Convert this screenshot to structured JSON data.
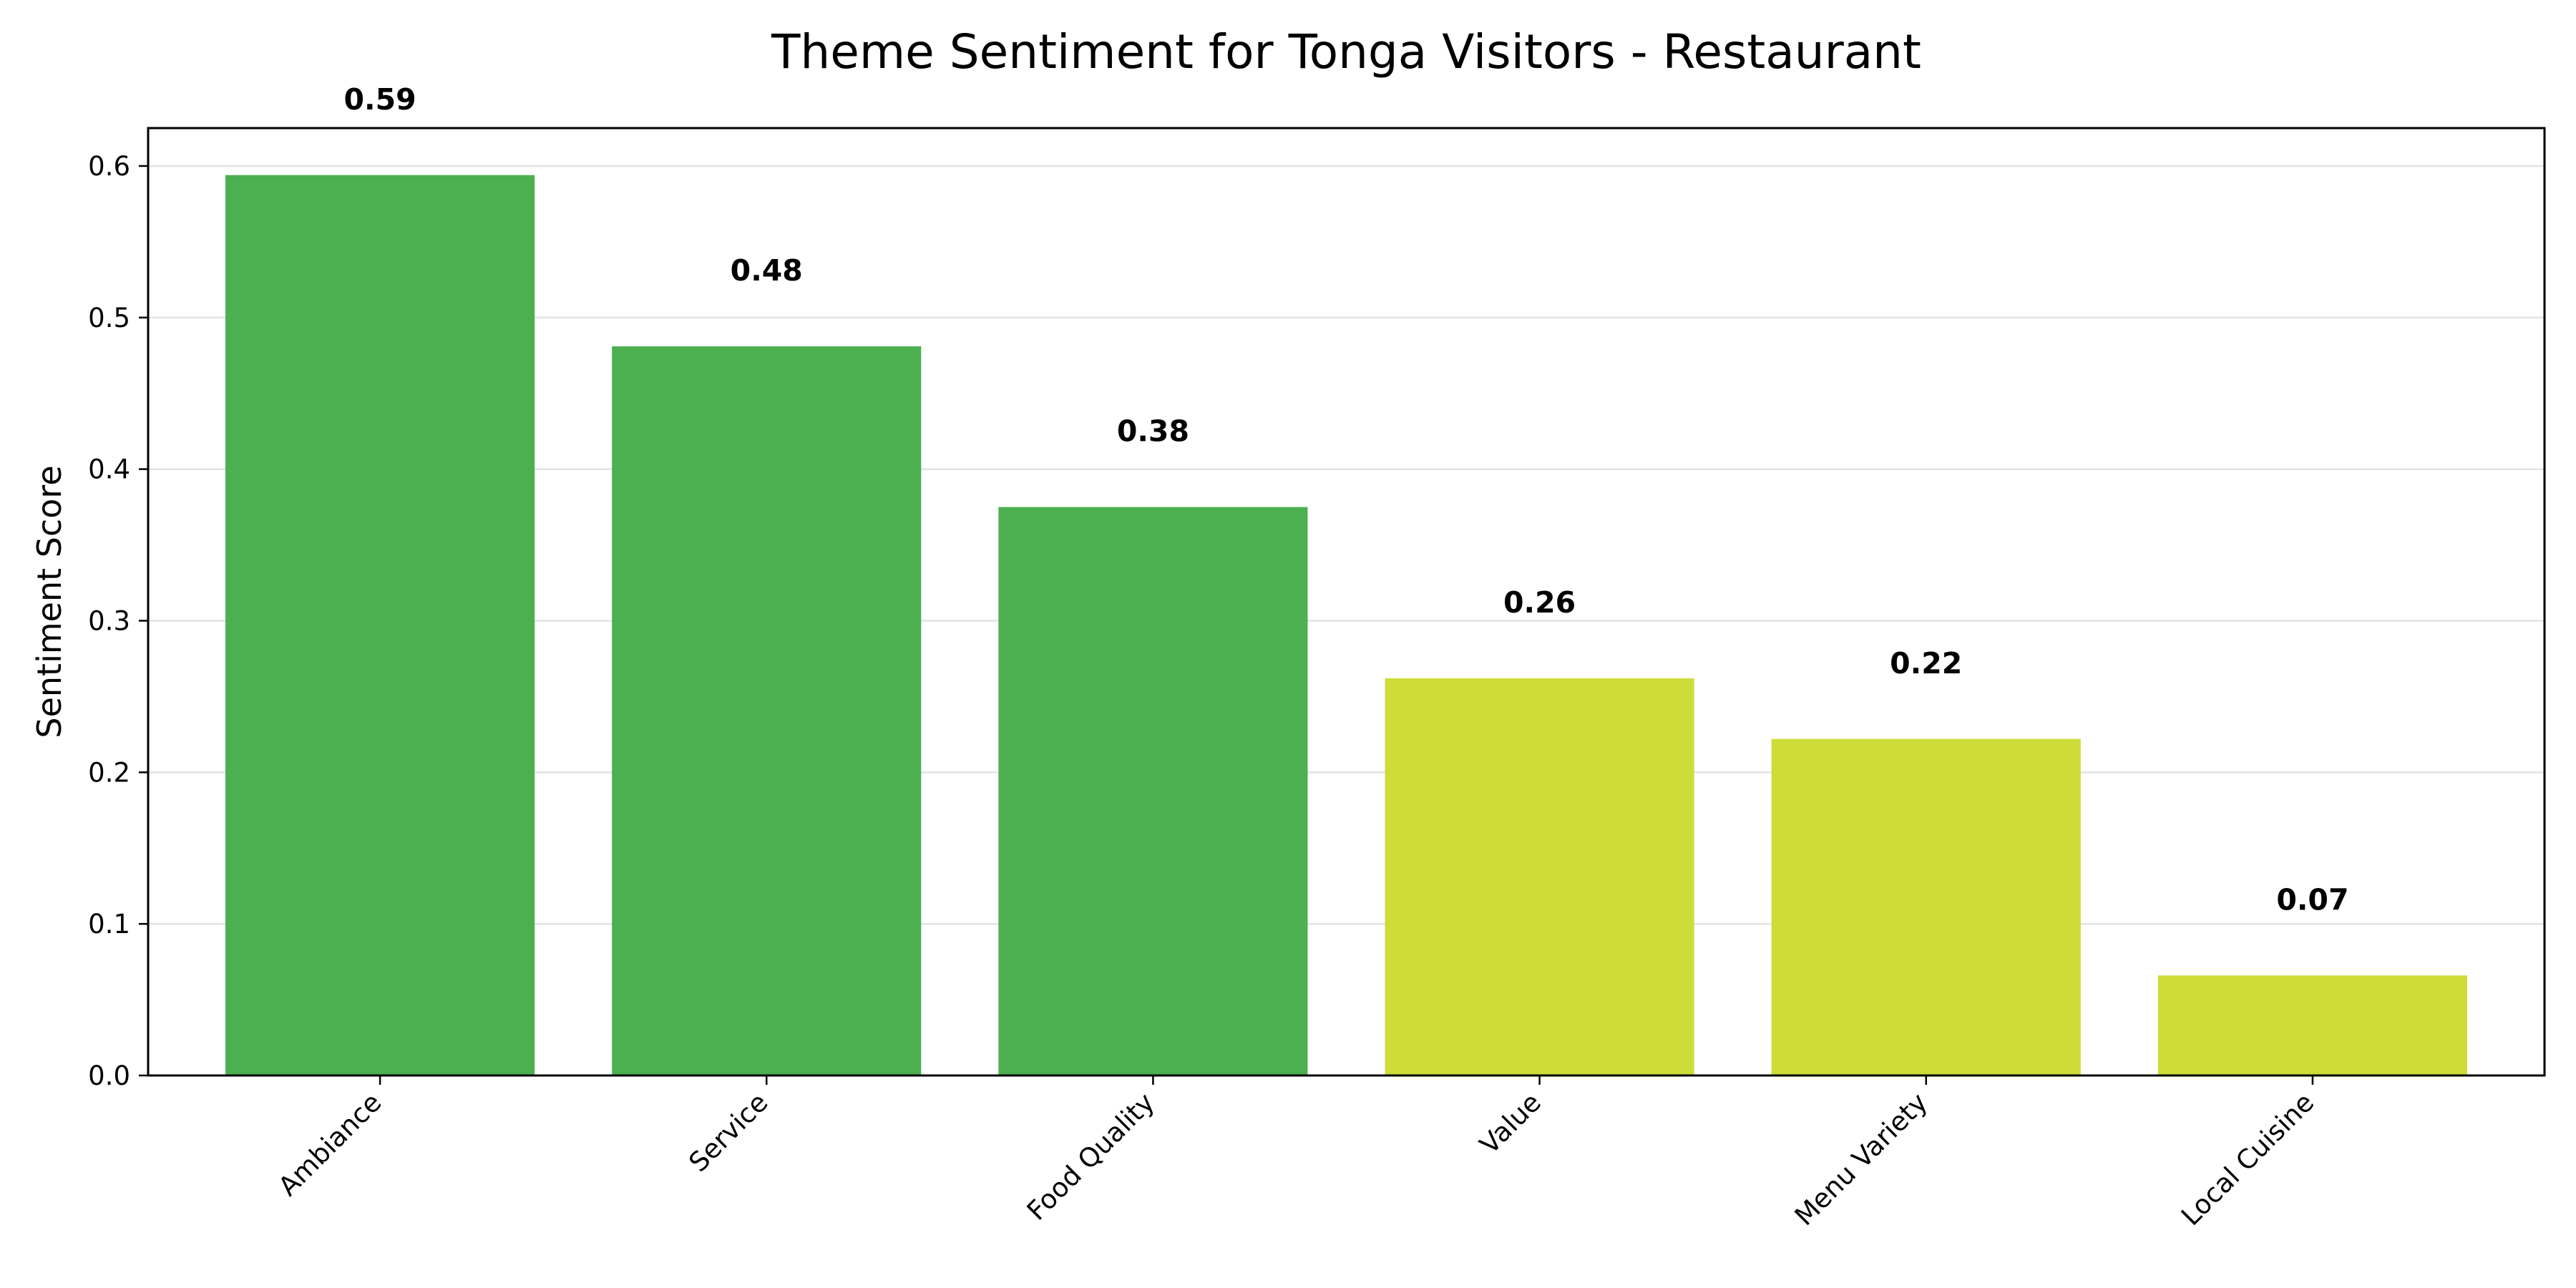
{
  "chart_data": {
    "type": "bar",
    "title": "Theme Sentiment for Tonga Visitors - Restaurant",
    "xlabel": "",
    "ylabel": "Sentiment Score",
    "categories": [
      "Ambiance",
      "Service",
      "Food Quality",
      "Value",
      "Menu Variety",
      "Local Cuisine"
    ],
    "values": [
      0.594,
      0.481,
      0.375,
      0.262,
      0.222,
      0.066
    ],
    "value_labels": [
      "0.59",
      "0.48",
      "0.38",
      "0.26",
      "0.22",
      "0.07"
    ],
    "bar_colors": [
      "#4caf50",
      "#4caf50",
      "#4caf50",
      "#cddc39",
      "#cddc39",
      "#cddc39"
    ],
    "ylim": [
      0,
      0.625
    ],
    "yticks": [
      0.0,
      0.1,
      0.2,
      0.3,
      0.4,
      0.5,
      0.6
    ],
    "ytick_labels": [
      "0.0",
      "0.1",
      "0.2",
      "0.3",
      "0.4",
      "0.5",
      "0.6"
    ],
    "grid": "horizontal",
    "legend": "none"
  }
}
